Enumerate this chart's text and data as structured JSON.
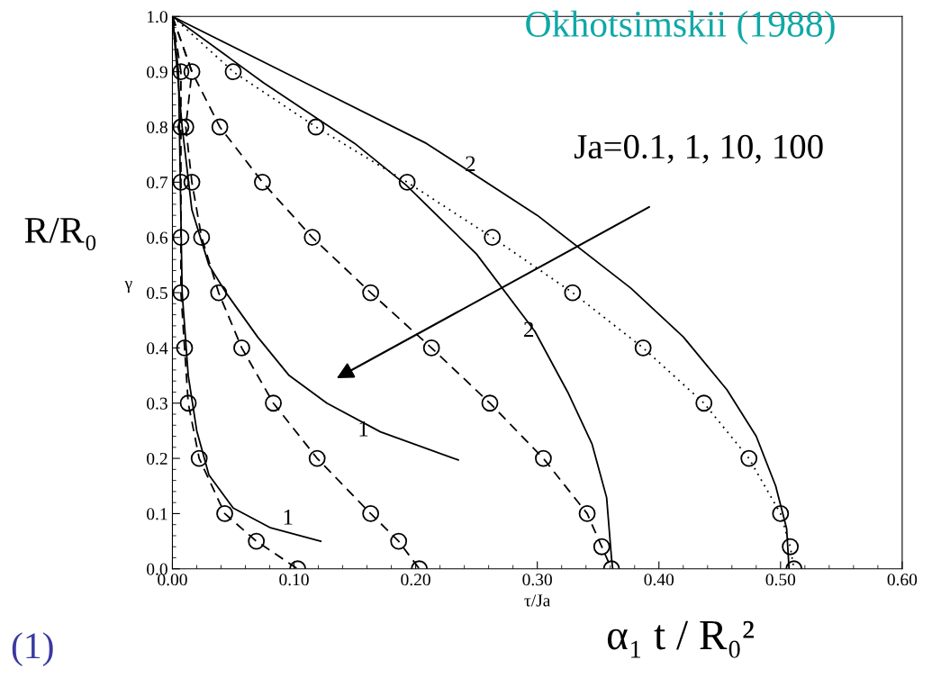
{
  "chart_data": {
    "type": "line",
    "xlabel": "τ/Ja",
    "ylabel": "γ",
    "xlim": [
      0,
      0.6
    ],
    "ylim": [
      0,
      1.0
    ],
    "xticks": [
      {
        "value": 0,
        "label": "0.00"
      },
      {
        "value": 0.1,
        "label": "0.10"
      },
      {
        "value": 0.2,
        "label": "0.20"
      },
      {
        "value": 0.3,
        "label": "0.30"
      },
      {
        "value": 0.4,
        "label": "0.40"
      },
      {
        "value": 0.5,
        "label": "0.50"
      },
      {
        "value": 0.6,
        "label": "0.60"
      }
    ],
    "yticks": [
      {
        "value": 0,
        "label": "0.0"
      },
      0.1,
      0.2,
      0.3,
      0.4,
      0.5,
      0.6,
      0.7,
      0.8,
      0.9,
      {
        "value": 1.0,
        "label": "1.0"
      }
    ],
    "grid": false,
    "series": [
      {
        "type": "line",
        "color": "#000000",
        "line_style": "solid",
        "marker": "none",
        "x": [
          0,
          0.005,
          0.008,
          0.013,
          0.02,
          0.03,
          0.05,
          0.08,
          0.122
        ],
        "values": [
          1,
          0.9,
          0.5,
          0.35,
          0.25,
          0.17,
          0.11,
          0.075,
          0.05
        ]
      },
      {
        "type": "line",
        "color": "#000000",
        "line_style": "dashed",
        "marker": "none",
        "x": [
          0,
          0.007,
          0.007,
          0.007,
          0.007,
          0.007,
          0.01,
          0.013,
          0.022,
          0.043,
          0.069,
          0.103
        ],
        "values": [
          1,
          0.9,
          0.8,
          0.7,
          0.6,
          0.5,
          0.4,
          0.3,
          0.2,
          0.1,
          0.05,
          0
        ]
      },
      {
        "type": "scatter",
        "color": "#000000",
        "marker": "circle",
        "x": [
          0.007,
          0.007,
          0.007,
          0.007,
          0.007,
          0.01,
          0.013,
          0.022,
          0.043,
          0.069,
          0.103
        ],
        "values": [
          0.9,
          0.8,
          0.7,
          0.6,
          0.5,
          0.4,
          0.3,
          0.2,
          0.1,
          0.05,
          0
        ]
      },
      {
        "type": "line",
        "color": "#000000",
        "line_style": "solid",
        "marker": "none",
        "x": [
          0,
          0.008,
          0.016,
          0.03,
          0.044,
          0.07,
          0.096,
          0.127,
          0.171,
          0.235
        ],
        "values": [
          1,
          0.8,
          0.65,
          0.55,
          0.5,
          0.42,
          0.35,
          0.3,
          0.248,
          0.197
        ]
      },
      {
        "type": "line",
        "color": "#000000",
        "line_style": "dashed",
        "marker": "none",
        "x": [
          0,
          0.016,
          0.011,
          0.016,
          0.024,
          0.038,
          0.057,
          0.083,
          0.119,
          0.163,
          0.186,
          0.203
        ],
        "values": [
          1,
          0.9,
          0.8,
          0.7,
          0.6,
          0.5,
          0.4,
          0.3,
          0.2,
          0.1,
          0.05,
          0
        ]
      },
      {
        "type": "scatter",
        "color": "#000000",
        "marker": "circle",
        "x": [
          0.011,
          0.016,
          0.024,
          0.038,
          0.057,
          0.083,
          0.119,
          0.163,
          0.186,
          0.203
        ],
        "values": [
          0.8,
          0.7,
          0.6,
          0.5,
          0.4,
          0.3,
          0.2,
          0.1,
          0.05,
          0
        ]
      },
      {
        "type": "line",
        "color": "#000000",
        "line_style": "solid",
        "marker": "none",
        "x": [
          0,
          0.075,
          0.15,
          0.192,
          0.25,
          0.298,
          0.325,
          0.345,
          0.357,
          0.361,
          0.362
        ],
        "values": [
          1,
          0.88,
          0.77,
          0.695,
          0.57,
          0.43,
          0.32,
          0.226,
          0.129,
          0.02,
          0
        ]
      },
      {
        "type": "line",
        "color": "#000000",
        "line_style": "dashed",
        "marker": "none",
        "x": [
          0,
          0.016,
          0.039,
          0.074,
          0.115,
          0.163,
          0.213,
          0.261,
          0.305,
          0.341,
          0.353,
          0.361
        ],
        "values": [
          1,
          0.9,
          0.8,
          0.7,
          0.6,
          0.5,
          0.4,
          0.3,
          0.2,
          0.1,
          0.04,
          0
        ]
      },
      {
        "type": "scatter",
        "color": "#000000",
        "marker": "circle",
        "x": [
          0.016,
          0.039,
          0.074,
          0.115,
          0.163,
          0.213,
          0.261,
          0.305,
          0.341,
          0.353,
          0.361
        ],
        "values": [
          0.9,
          0.8,
          0.7,
          0.6,
          0.5,
          0.4,
          0.3,
          0.2,
          0.1,
          0.04,
          0
        ]
      },
      {
        "type": "line",
        "color": "#000000",
        "line_style": "solid",
        "marker": "none",
        "x": [
          0,
          0.1,
          0.209,
          0.3,
          0.377,
          0.42,
          0.456,
          0.48,
          0.496,
          0.505,
          0.507
        ],
        "values": [
          1,
          0.89,
          0.77,
          0.64,
          0.508,
          0.42,
          0.324,
          0.24,
          0.15,
          0.073,
          0
        ]
      },
      {
        "type": "line",
        "color": "#000000",
        "line_style": "dotted",
        "marker": "none",
        "x": [
          0,
          0.05,
          0.118,
          0.193,
          0.263,
          0.329,
          0.387,
          0.437,
          0.474,
          0.5,
          0.508,
          0.511
        ],
        "values": [
          1,
          0.9,
          0.8,
          0.7,
          0.6,
          0.5,
          0.4,
          0.3,
          0.2,
          0.1,
          0.04,
          0
        ]
      },
      {
        "type": "scatter",
        "color": "#000000",
        "marker": "circle",
        "x": [
          0.05,
          0.118,
          0.193,
          0.263,
          0.329,
          0.387,
          0.437,
          0.474,
          0.5,
          0.508,
          0.511
        ],
        "values": [
          0.9,
          0.8,
          0.7,
          0.6,
          0.5,
          0.4,
          0.3,
          0.2,
          0.1,
          0.04,
          0
        ]
      }
    ],
    "annotations": [
      "1",
      "1",
      {
        "text": "2",
        "x": 0.293,
        "y": 0.43
      },
      {
        "text": "2",
        "x": 0.245,
        "y": 0.73
      },
      "Ja=0.1, 1, 10, 100",
      "Okhotsimskii (1988)",
      "R/R₀",
      "α₁ t / R₀²",
      "(1)"
    ]
  }
}
